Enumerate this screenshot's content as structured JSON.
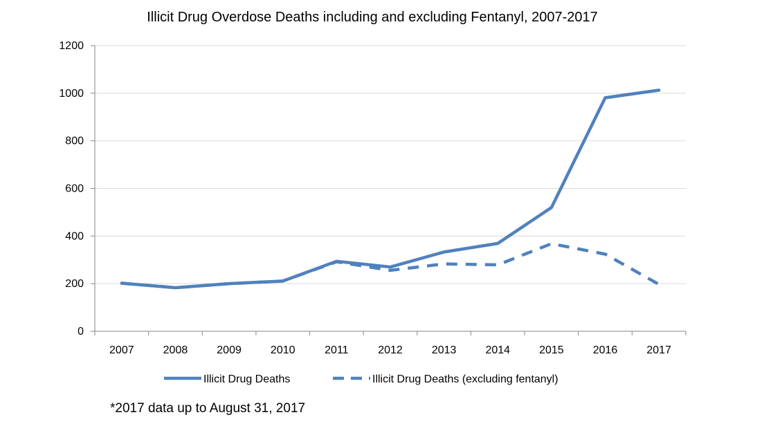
{
  "chart_data": {
    "type": "line",
    "title": "Illicit Drug Overdose Deaths including and excluding Fentanyl, 2007-2017",
    "xlabel": "",
    "ylabel": "",
    "categories": [
      "2007",
      "2008",
      "2009",
      "2010",
      "2011",
      "2012",
      "2013",
      "2014",
      "2015",
      "2016",
      "2017"
    ],
    "ylim": [
      0,
      1200
    ],
    "yticks": [
      "0",
      "200",
      "400",
      "600",
      "800",
      "1000",
      "1200"
    ],
    "grid": true,
    "legend_position": "bottom",
    "series": [
      {
        "name": "Illicit Drug Deaths",
        "style": "solid",
        "color": "#4F81BD",
        "values": [
          202,
          183,
          200,
          211,
          294,
          270,
          333,
          369,
          520,
          981,
          1013
        ]
      },
      {
        "name": "Illicit Drug Deaths (excluding fentanyl)",
        "style": "dashed",
        "color": "#4F81BD",
        "values": [
          202,
          183,
          200,
          211,
          292,
          256,
          283,
          279,
          368,
          324,
          197
        ]
      }
    ],
    "annotations": [
      "*2017 data up to August 31, 2017"
    ]
  }
}
